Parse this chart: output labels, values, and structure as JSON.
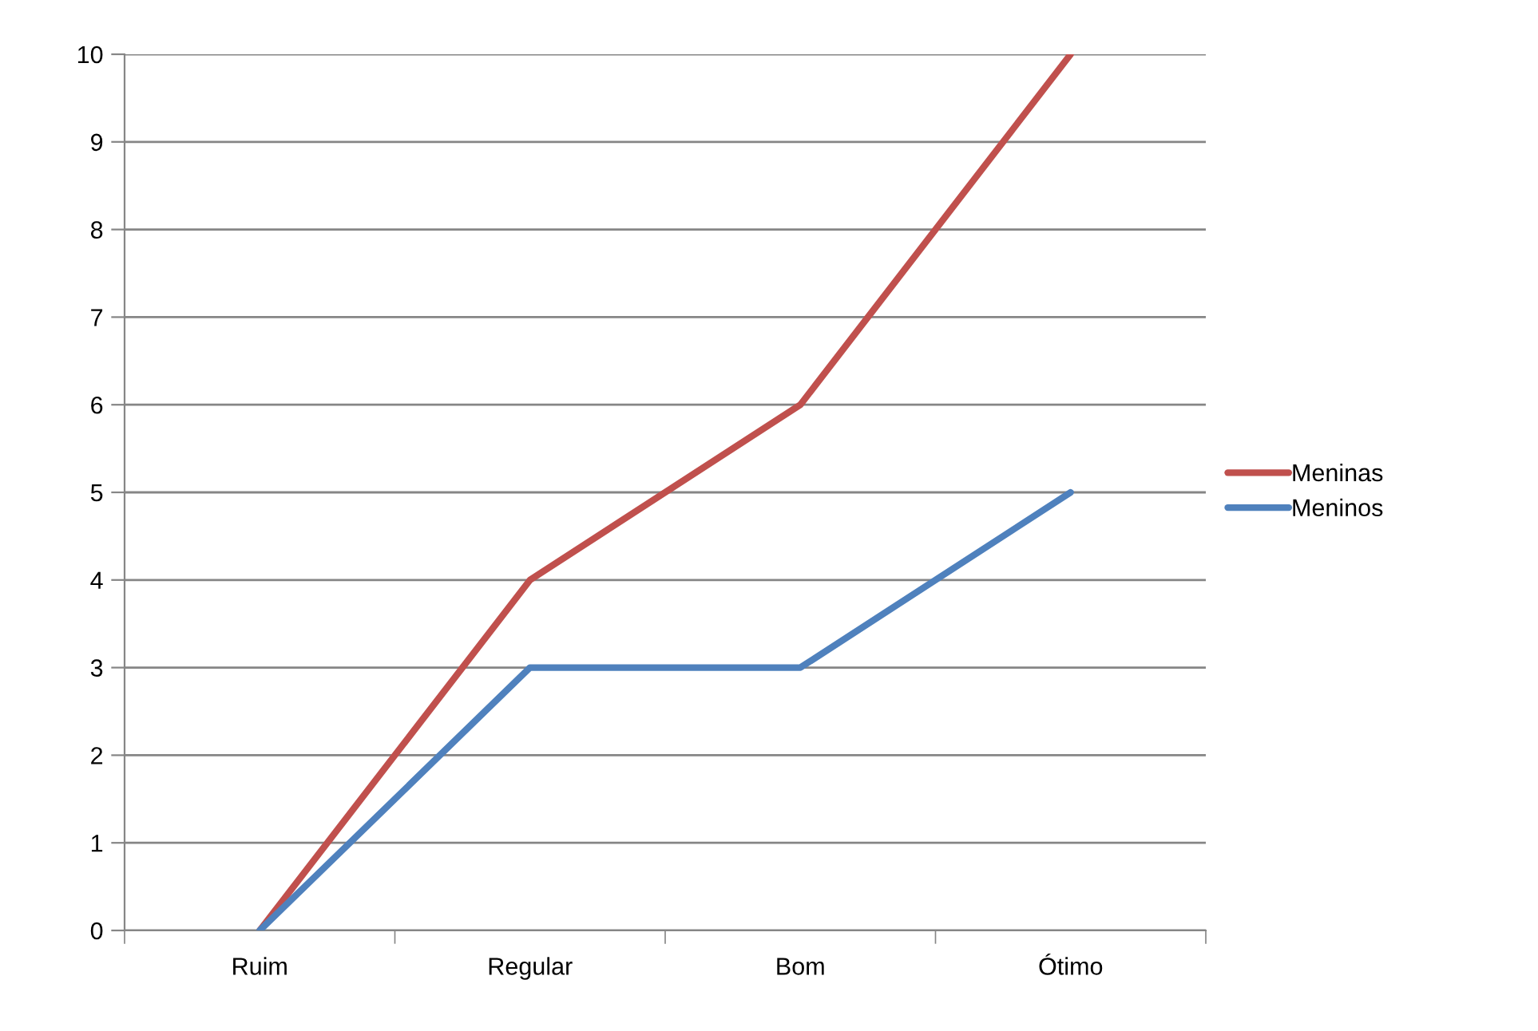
{
  "chart_data": {
    "type": "line",
    "categories": [
      "Ruim",
      "Regular",
      "Bom",
      "Ótimo"
    ],
    "series": [
      {
        "name": "Meninas",
        "color": "#c0504d",
        "values": [
          0,
          4,
          6,
          10
        ]
      },
      {
        "name": "Meninos",
        "color": "#4f81bd",
        "values": [
          0,
          3,
          3,
          5
        ]
      }
    ],
    "ylim": [
      0,
      10
    ],
    "yticks": [
      0,
      1,
      2,
      3,
      4,
      5,
      6,
      7,
      8,
      9,
      10
    ],
    "grid": "y",
    "legend": "right",
    "marker": "none",
    "line_style": "solid"
  }
}
